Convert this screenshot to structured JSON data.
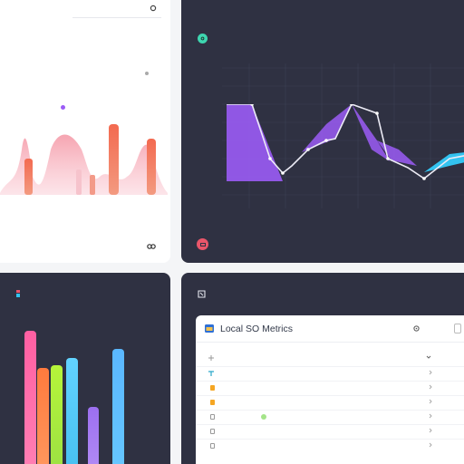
{
  "colors": {
    "panel_dark": "#2f3142",
    "panel_light": "#ffffff",
    "purple": "#9b5cf6",
    "cyan": "#33c3f0",
    "coral": "#f3705a",
    "pink": "#f6b3c0",
    "teal": "#3ed6b0",
    "red": "#e9566a"
  },
  "top_left": {
    "header_values": [
      "",
      ""
    ],
    "sub_value": "",
    "title": "",
    "legend": [
      "",
      "",
      ""
    ],
    "x_ticks": [
      "",
      "",
      "",
      "",
      "",
      ""
    ],
    "footer": "",
    "footer_icon": "link-icon"
  },
  "top_right": {
    "label": "",
    "value": "",
    "y_ticks": [
      "",
      "",
      "",
      "",
      "",
      "",
      ""
    ],
    "x_ticks": [
      "",
      "",
      ""
    ],
    "footer": ""
  },
  "bottom_left": {
    "title": "",
    "y_ticks": [
      "",
      "",
      "",
      "",
      "",
      ""
    ]
  },
  "bottom_right": {
    "header": "",
    "panel_title": "Local SO Metrics",
    "panel_action": "",
    "rows": [
      {
        "label": "",
        "value": ""
      },
      {
        "label": "",
        "value": ""
      },
      {
        "label": "",
        "value": ""
      },
      {
        "label": "",
        "value": ""
      },
      {
        "label": "",
        "value": ""
      },
      {
        "label": "",
        "value": ""
      },
      {
        "label": "",
        "value": ""
      }
    ]
  }
}
